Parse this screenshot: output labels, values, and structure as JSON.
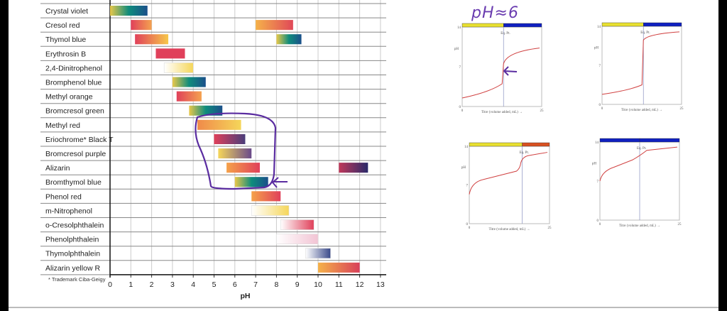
{
  "chart_data": [
    {
      "type": "bar",
      "subtype": "range",
      "xlabel": "pH",
      "xlim": [
        0,
        13
      ],
      "xticks": [
        0,
        1,
        2,
        3,
        4,
        5,
        6,
        7,
        8,
        9,
        10,
        11,
        12,
        13
      ],
      "grid": true,
      "footnote": "* Trademark Ciba-Geigy",
      "series": [
        {
          "label": "Crystal violet",
          "ranges": [
            [
              0,
              1.8,
              [
                "#e8c84a",
                "#0f8c7c",
                "#1b4f8a"
              ]
            ]
          ]
        },
        {
          "label": "Cresol red",
          "ranges": [
            [
              1.0,
              2.0,
              [
                "#e0405a",
                "#f4a250"
              ]
            ],
            [
              7.0,
              8.8,
              [
                "#f5b24a",
                "#e04858"
              ]
            ]
          ]
        },
        {
          "label": "Thymol blue",
          "ranges": [
            [
              1.2,
              2.8,
              [
                "#e0405a",
                "#f7c74a"
              ]
            ],
            [
              8.0,
              9.2,
              [
                "#e8c84a",
                "#0f8c7c",
                "#1b4f8a"
              ]
            ]
          ]
        },
        {
          "label": "Erythrosin B",
          "ranges": [
            [
              2.2,
              3.6,
              [
                "#e0405a",
                "#e0405a"
              ]
            ]
          ]
        },
        {
          "label": "2,4-Dinitrophenol",
          "ranges": [
            [
              2.6,
              4.0,
              [
                "#ffffff",
                "#f5d65a"
              ]
            ]
          ]
        },
        {
          "label": "Bromphenol blue",
          "ranges": [
            [
              3.0,
              4.6,
              [
                "#e8c84a",
                "#0f8c7c",
                "#1b4f8a"
              ]
            ]
          ]
        },
        {
          "label": "Methyl orange",
          "ranges": [
            [
              3.2,
              4.4,
              [
                "#e0405a",
                "#f4a250"
              ]
            ]
          ]
        },
        {
          "label": "Bromcresol green",
          "ranges": [
            [
              3.8,
              5.4,
              [
                "#e8c84a",
                "#0f8c7c",
                "#1b4f8a"
              ]
            ]
          ]
        },
        {
          "label": "Methyl red",
          "ranges": [
            [
              4.2,
              6.3,
              [
                "#f08a4a",
                "#f5d65a"
              ]
            ]
          ]
        },
        {
          "label": "Eriochrome* Black T",
          "ranges": [
            [
              5.0,
              6.5,
              [
                "#e0405a",
                "#4a3d7a"
              ]
            ]
          ]
        },
        {
          "label": "Bromcresol purple",
          "ranges": [
            [
              5.2,
              6.8,
              [
                "#f5d65a",
                "#6a4a8a"
              ]
            ]
          ]
        },
        {
          "label": "Alizarin",
          "ranges": [
            [
              5.6,
              7.2,
              [
                "#f5a24a",
                "#e0405a"
              ]
            ],
            [
              11.0,
              12.4,
              [
                "#c0385a",
                "#2a2a6a"
              ]
            ]
          ]
        },
        {
          "label": "Bromthymol blue",
          "ranges": [
            [
              6.0,
              7.6,
              [
                "#e8c84a",
                "#0f8c7c",
                "#1b4f8a"
              ]
            ]
          ]
        },
        {
          "label": "Phenol red",
          "ranges": [
            [
              6.8,
              8.2,
              [
                "#f5a24a",
                "#e0405a"
              ]
            ]
          ]
        },
        {
          "label": "m-Nitrophenol",
          "ranges": [
            [
              6.8,
              8.6,
              [
                "#ffffff",
                "#f5d65a"
              ]
            ]
          ]
        },
        {
          "label": "o-Cresolphthalein",
          "ranges": [
            [
              8.2,
              9.8,
              [
                "#ffffff",
                "#e0405a"
              ]
            ]
          ]
        },
        {
          "label": "Phenolphthalein",
          "ranges": [
            [
              8.0,
              10.0,
              [
                "#ffffff",
                "#f2c4d4"
              ]
            ]
          ]
        },
        {
          "label": "Thymolphthalein",
          "ranges": [
            [
              9.4,
              10.6,
              [
                "#ffffff",
                "#3a4a8a"
              ]
            ]
          ]
        },
        {
          "label": "Alizarin yellow R",
          "ranges": [
            [
              10.0,
              12.0,
              [
                "#f5b24a",
                "#d8405a"
              ]
            ]
          ]
        }
      ]
    },
    {
      "type": "line",
      "ylabel": "pH",
      "xlabel": "Titre (volume added, mL) →",
      "ylim": [
        0,
        14
      ],
      "xlim": [
        0,
        25
      ],
      "yticks": [
        "0",
        "7",
        "14"
      ],
      "xticks": [
        "0",
        "25"
      ],
      "eq_label": "Eq. Pt.",
      "bar_colors": [
        "#e8e030",
        "#1020c0"
      ],
      "eq_x": 13
    },
    {
      "type": "line",
      "ylabel": "pH",
      "xlabel": "Titre (volume added, mL) →",
      "ylim": [
        0,
        14
      ],
      "xlim": [
        0,
        25
      ],
      "yticks": [
        "0",
        "7",
        "14"
      ],
      "xticks": [
        "0",
        "25"
      ],
      "eq_label": "Eq. Pt.",
      "bar_colors": [
        "#e8e030",
        "#1020c0"
      ],
      "eq_x": 13
    },
    {
      "type": "line",
      "ylabel": "pH",
      "xlabel": "Titre (volume added, mL) →",
      "ylim": [
        0,
        14
      ],
      "xlim": [
        0,
        25
      ],
      "yticks": [
        "0",
        "7",
        "14"
      ],
      "xticks": [
        "0",
        "25"
      ],
      "eq_label": "Eq. Pt.",
      "bar_colors": [
        "#e8e030",
        "#d85020"
      ],
      "eq_x": 16.5
    },
    {
      "type": "line",
      "ylabel": "pH",
      "xlabel": "Titre (volume added, mL) →",
      "ylim": [
        0,
        14
      ],
      "xlim": [
        0,
        25
      ],
      "yticks": [
        "0",
        "7",
        "14"
      ],
      "xticks": [
        "0",
        "25"
      ],
      "eq_label": "Eq. Pt.",
      "bar_colors": [
        "#1020c0",
        "#1020c0"
      ],
      "eq_x": 12.5
    }
  ],
  "annotations": {
    "handwritten": "pH≈6",
    "ink_color": "#5a2ca0"
  }
}
